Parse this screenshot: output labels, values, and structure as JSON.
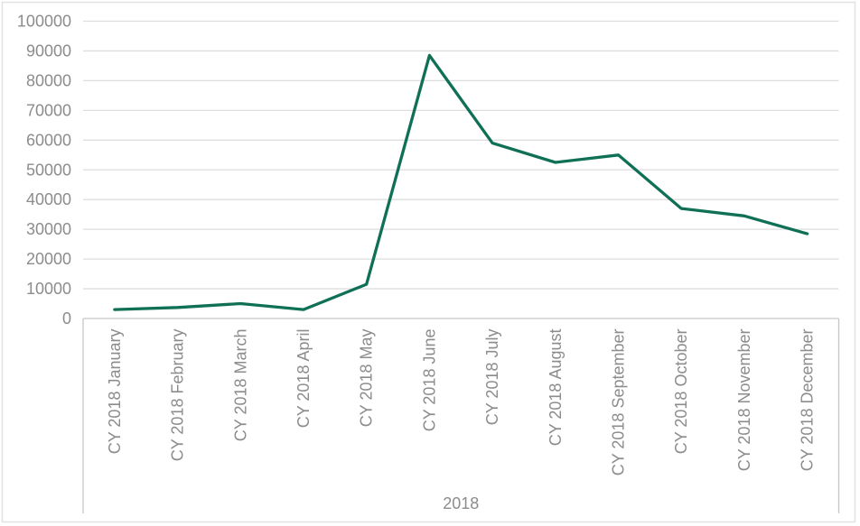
{
  "chart_data": {
    "type": "line",
    "title": "",
    "categories": [
      "CY 2018 January",
      "CY 2018 February",
      "CY 2018 March",
      "CY 2018 April",
      "CY 2018 May",
      "CY 2018 June",
      "CY 2018 July",
      "CY 2018 August",
      "CY 2018 September",
      "CY 2018 October",
      "CY 2018 November",
      "CY 2018 December"
    ],
    "series": [
      {
        "name": "",
        "values": [
          3000,
          3700,
          5000,
          3000,
          11500,
          88500,
          59000,
          52500,
          55000,
          37000,
          34500,
          28500
        ]
      }
    ],
    "x_axis_group_label": "2018",
    "xlabel": "",
    "ylabel": "",
    "ylim": [
      0,
      100000
    ],
    "y_tick_step": 10000,
    "y_tick_labels": [
      "0",
      "10000",
      "20000",
      "30000",
      "40000",
      "50000",
      "60000",
      "70000",
      "80000",
      "90000",
      "100000"
    ],
    "grid": true,
    "legend": "none",
    "markers": "none"
  },
  "colors": {
    "line": "#0F7056",
    "axis_label": "#8C8C8C",
    "gridline": "#DEDEDE",
    "axis_line": "#C6C6C6",
    "chart_border": "#E2E2E2",
    "background": "#FFFFFF"
  }
}
